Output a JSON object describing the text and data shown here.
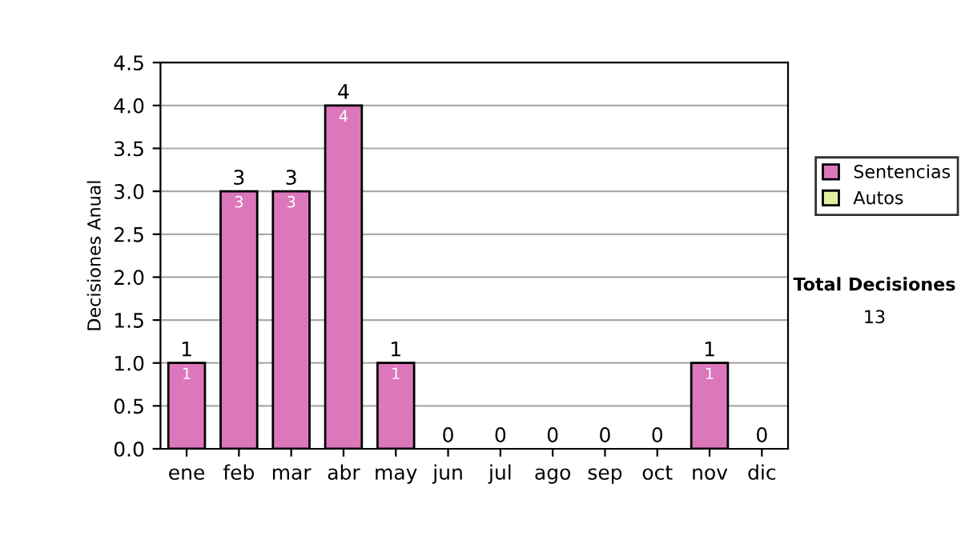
{
  "chart_data": {
    "type": "bar",
    "ylabel": "Decisiones Anual",
    "categories": [
      "ene",
      "feb",
      "mar",
      "abr",
      "may",
      "jun",
      "jul",
      "ago",
      "sep",
      "oct",
      "nov",
      "dic"
    ],
    "series": [
      {
        "name": "Sentencias",
        "color": "#dd77bb",
        "values": [
          1,
          3,
          3,
          4,
          1,
          0,
          0,
          0,
          0,
          0,
          1,
          0
        ],
        "value_labels": [
          "1",
          "3",
          "3",
          "4",
          "1",
          null,
          null,
          null,
          null,
          null,
          "1",
          null
        ]
      },
      {
        "name": "Autos",
        "color": "#e6eea0",
        "values": [
          0,
          0,
          0,
          0,
          0,
          0,
          0,
          0,
          0,
          0,
          0,
          0
        ]
      }
    ],
    "stacked": true,
    "totals": [
      "1",
      "3",
      "3",
      "4",
      "1",
      "0",
      "0",
      "0",
      "0",
      "0",
      "1",
      "0"
    ],
    "ylim": [
      0,
      4.5
    ],
    "yticks": [
      {
        "value": 0,
        "label": "0.0"
      },
      {
        "value": 0.5,
        "label": "0.5"
      },
      {
        "value": 1,
        "label": "1.0"
      },
      {
        "value": 1.5,
        "label": "1.5"
      },
      {
        "value": 2,
        "label": "2.0"
      },
      {
        "value": 2.5,
        "label": "2.5"
      },
      {
        "value": 3,
        "label": "3.0"
      },
      {
        "value": 3.5,
        "label": "3.5"
      },
      {
        "value": 4,
        "label": "4.0"
      },
      {
        "value": 4.5,
        "label": "4.5"
      }
    ],
    "grid": "y",
    "legend": "right",
    "annotations": [
      "Total Decisiones",
      "13"
    ]
  }
}
